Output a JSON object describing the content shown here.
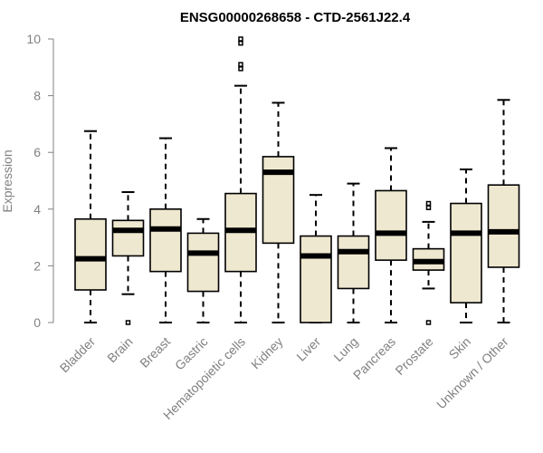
{
  "chart_data": {
    "type": "boxplot",
    "title": "ENSG00000268658 - CTD-2561J22.4",
    "ylabel": "Expression",
    "ylim": [
      0,
      10
    ],
    "yticks": [
      0,
      2,
      4,
      6,
      8,
      10
    ],
    "categories": [
      "Bladder",
      "Brain",
      "Breast",
      "Gastric",
      "Hematopoietic cells",
      "Kidney",
      "Liver",
      "Lung",
      "Pancreas",
      "Prostate",
      "Skin",
      "Unknown / Other"
    ],
    "boxes": [
      {
        "min": 0.0,
        "q1": 1.15,
        "median": 2.25,
        "q3": 3.65,
        "max": 6.75,
        "outliers": []
      },
      {
        "min": 1.0,
        "q1": 2.35,
        "median": 3.25,
        "q3": 3.6,
        "max": 4.6,
        "outliers": [
          0.0
        ]
      },
      {
        "min": 0.0,
        "q1": 1.8,
        "median": 3.3,
        "q3": 4.0,
        "max": 6.5,
        "outliers": []
      },
      {
        "min": 0.0,
        "q1": 1.1,
        "median": 2.45,
        "q3": 3.15,
        "max": 3.65,
        "outliers": []
      },
      {
        "min": 0.0,
        "q1": 1.8,
        "median": 3.25,
        "q3": 4.55,
        "max": 8.35,
        "outliers": [
          8.95,
          9.1,
          9.85,
          10.0
        ]
      },
      {
        "min": 0.0,
        "q1": 2.8,
        "median": 5.3,
        "q3": 5.85,
        "max": 7.75,
        "outliers": []
      },
      {
        "min": 0.0,
        "q1": 0.0,
        "median": 2.35,
        "q3": 3.05,
        "max": 4.5,
        "outliers": []
      },
      {
        "min": 0.0,
        "q1": 1.2,
        "median": 2.5,
        "q3": 3.05,
        "max": 4.9,
        "outliers": []
      },
      {
        "min": 0.0,
        "q1": 2.2,
        "median": 3.15,
        "q3": 4.65,
        "max": 6.15,
        "outliers": []
      },
      {
        "min": 1.2,
        "q1": 1.85,
        "median": 2.15,
        "q3": 2.6,
        "max": 3.55,
        "outliers": [
          0.0,
          4.05,
          4.2
        ]
      },
      {
        "min": 0.0,
        "q1": 0.7,
        "median": 3.15,
        "q3": 4.2,
        "max": 5.4,
        "outliers": []
      },
      {
        "min": 0.0,
        "q1": 1.95,
        "median": 3.2,
        "q3": 4.85,
        "max": 7.85,
        "outliers": []
      }
    ],
    "colors": {
      "box_fill": "#efe8d0",
      "box_stroke": "#000000",
      "axis": "#808080"
    },
    "grid": false
  }
}
